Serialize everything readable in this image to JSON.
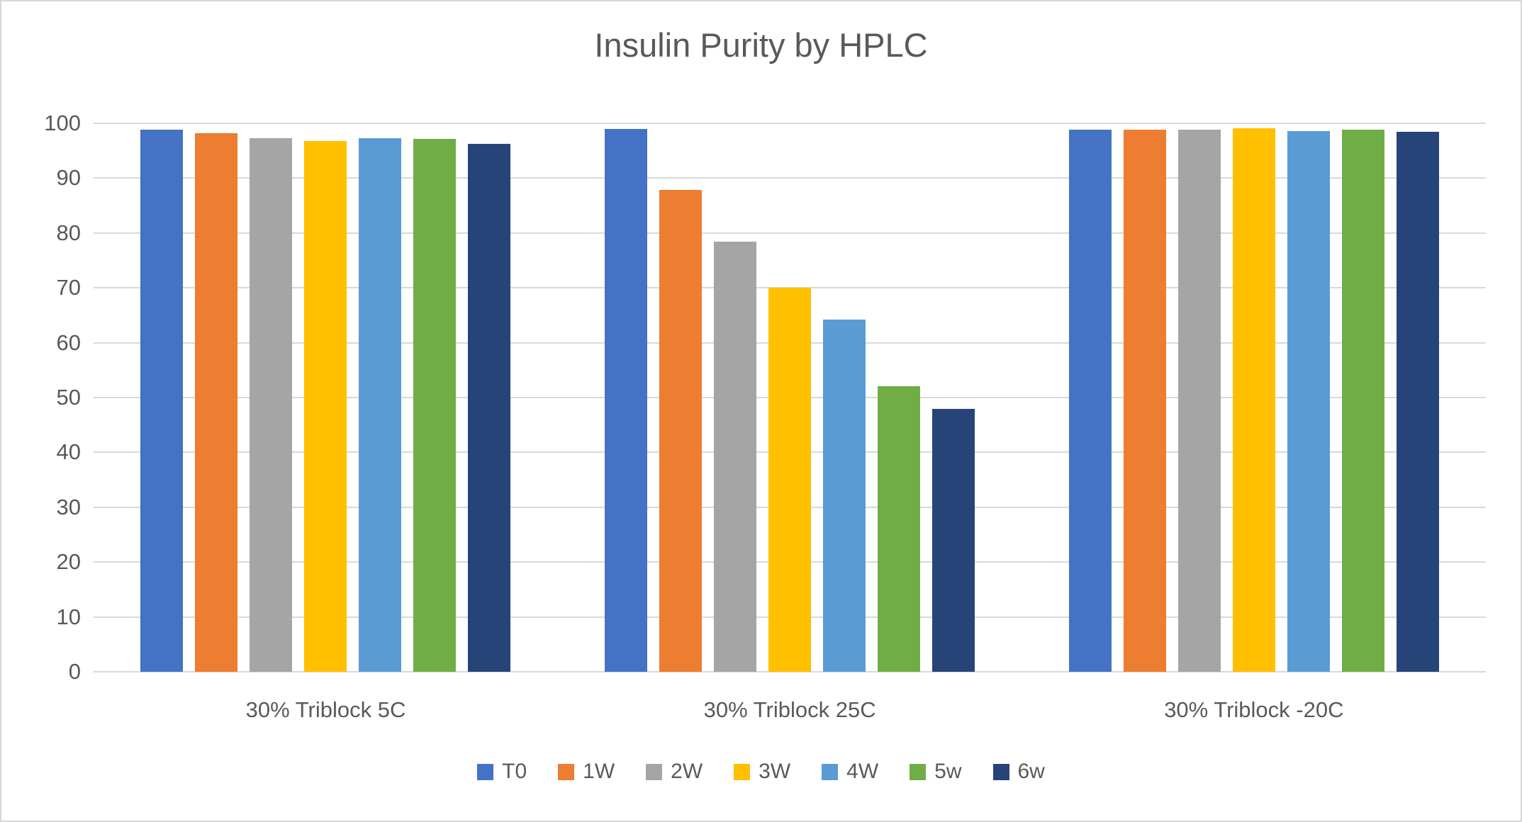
{
  "chart_data": {
    "type": "bar",
    "title": "Insulin Purity by HPLC",
    "categories": [
      "30% Triblock 5C",
      "30% Triblock 25C",
      "30% Triblock -20C"
    ],
    "series": [
      {
        "name": "T0",
        "color": "#4472C4",
        "values": [
          98.8,
          99.0,
          98.9
        ]
      },
      {
        "name": "1W",
        "color": "#ED7D31",
        "values": [
          98.2,
          87.8,
          98.9
        ]
      },
      {
        "name": "2W",
        "color": "#A5A5A5",
        "values": [
          97.3,
          78.4,
          98.9
        ]
      },
      {
        "name": "3W",
        "color": "#FFC000",
        "values": [
          96.8,
          70.0,
          99.1
        ]
      },
      {
        "name": "4W",
        "color": "#5B9BD5",
        "values": [
          97.3,
          64.2,
          98.6
        ]
      },
      {
        "name": "5w",
        "color": "#70AD47",
        "values": [
          97.1,
          52.1,
          98.9
        ]
      },
      {
        "name": "6w",
        "color": "#264478",
        "values": [
          96.2,
          47.9,
          98.4
        ]
      }
    ],
    "xlabel": "",
    "ylabel": "",
    "ylim": [
      0,
      100
    ],
    "yticks": [
      0,
      10,
      20,
      30,
      40,
      50,
      60,
      70,
      80,
      90,
      100
    ],
    "grid": true,
    "legend_position": "bottom",
    "text_color": "#595959",
    "gridline_color": "#D9D9D9"
  }
}
